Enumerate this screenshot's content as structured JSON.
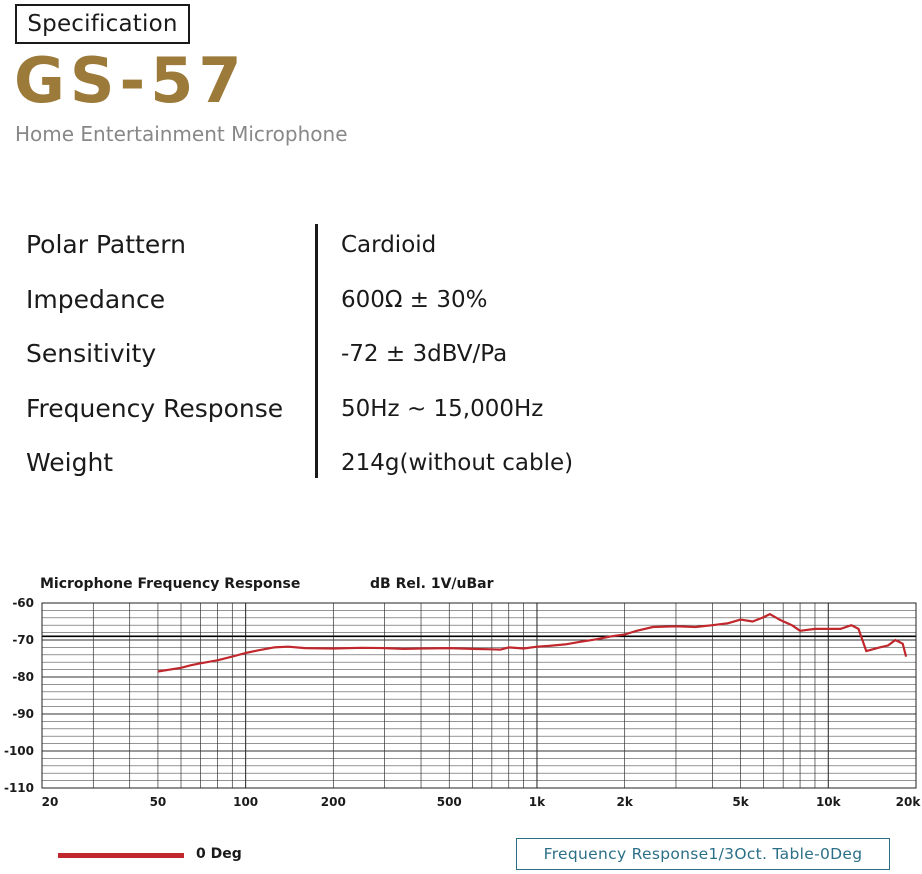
{
  "header": {
    "badge": "Specification",
    "model": "GS-57",
    "subtitle": "Home Entertainment Microphone"
  },
  "specs": [
    {
      "label": "Polar Pattern",
      "value": "Cardioid"
    },
    {
      "label": "Impedance",
      "value": "600Ω ± 30%"
    },
    {
      "label": "Sensitivity",
      "value": "-72 ± 3dBV/Pa"
    },
    {
      "label": "Frequency Response",
      "value": "50Hz ~ 15,000Hz"
    },
    {
      "label": "Weight",
      "value": "214g(without cable)"
    }
  ],
  "chart_data": {
    "type": "line",
    "title": "Microphone Frequency Response",
    "ylabel": "dB Rel. 1V/uBar",
    "xscale": "log",
    "xlim": [
      20,
      20000
    ],
    "ylim": [
      -110,
      -60
    ],
    "x_ticks": [
      {
        "value": 20,
        "label": "20"
      },
      {
        "value": 50,
        "label": "50"
      },
      {
        "value": 100,
        "label": "100"
      },
      {
        "value": 200,
        "label": "200"
      },
      {
        "value": 500,
        "label": "500"
      },
      {
        "value": 1000,
        "label": "1k"
      },
      {
        "value": 2000,
        "label": "2k"
      },
      {
        "value": 5000,
        "label": "5k"
      },
      {
        "value": 10000,
        "label": "10k"
      },
      {
        "value": 20000,
        "label": "20k"
      }
    ],
    "y_ticks": [
      {
        "value": -60,
        "label": "-60"
      },
      {
        "value": -70,
        "label": "-70"
      },
      {
        "value": -80,
        "label": "-80"
      },
      {
        "value": -90,
        "label": "-90"
      },
      {
        "value": -100,
        "label": "-100"
      },
      {
        "value": -110,
        "label": "-110"
      }
    ],
    "reference_line": -69,
    "grid": true,
    "series": [
      {
        "name": "0 Deg",
        "color": "#c0282d",
        "x": [
          50,
          55,
          60,
          65,
          70,
          80,
          90,
          100,
          110,
          125,
          140,
          160,
          200,
          250,
          300,
          350,
          400,
          500,
          600,
          700,
          750,
          800,
          900,
          1000,
          1100,
          1250,
          1400,
          1600,
          1800,
          2000,
          2200,
          2500,
          3000,
          3500,
          4000,
          4500,
          5000,
          5500,
          6000,
          6300,
          6800,
          7500,
          8000,
          9000,
          10000,
          11000,
          12000,
          12700,
          13500,
          15000,
          16000,
          17000,
          18000,
          18500
        ],
        "y": [
          -78.5,
          -78,
          -77.5,
          -76.8,
          -76.3,
          -75.5,
          -74.5,
          -73.5,
          -72.8,
          -72,
          -71.8,
          -72.2,
          -72.3,
          -72.1,
          -72.2,
          -72.4,
          -72.3,
          -72.2,
          -72.4,
          -72.5,
          -72.6,
          -72,
          -72.3,
          -71.8,
          -71.6,
          -71.2,
          -70.5,
          -69.8,
          -69,
          -68.5,
          -67.5,
          -66.5,
          -66.3,
          -66.5,
          -66,
          -65.5,
          -64.5,
          -65,
          -63.8,
          -63,
          -64.5,
          -66,
          -67.5,
          -67,
          -67,
          -67,
          -66,
          -67,
          -73,
          -72,
          -71.5,
          -70,
          -71,
          -74.5
        ]
      }
    ]
  },
  "caption": "Frequency Response1/3Oct. Table-0Deg"
}
